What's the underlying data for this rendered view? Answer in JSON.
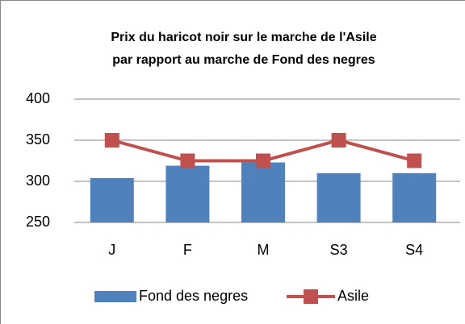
{
  "chart_data": {
    "type": "combo",
    "title": [
      "Prix du haricot noir sur le marche de l'Asile",
      "par rapport au marche de Fond des negres"
    ],
    "categories": [
      "J",
      "F",
      "M",
      "S3",
      "S4"
    ],
    "series": [
      {
        "name": "Fond des negres",
        "type": "bar",
        "color": "#4f81bd",
        "values": [
          304,
          319,
          323,
          310,
          310
        ]
      },
      {
        "name": "Asile",
        "type": "line",
        "color": "#c0504d",
        "values": [
          350,
          325,
          325,
          350,
          325
        ]
      }
    ],
    "ylim": [
      250,
      400
    ],
    "yticks": [
      250,
      300,
      350,
      400
    ],
    "grid": true
  }
}
